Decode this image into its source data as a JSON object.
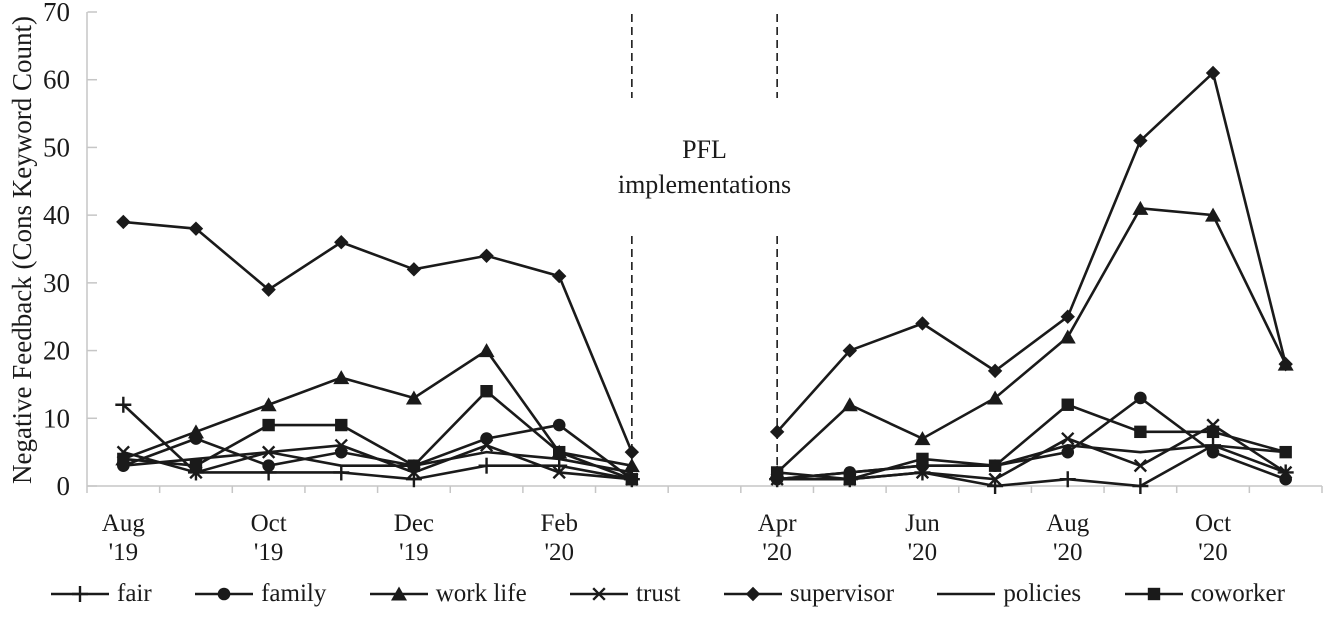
{
  "figure": {
    "y_axis_title": "Negative Feedback (Cons Keyword Count)"
  },
  "chart_data": {
    "type": "line",
    "title": "",
    "xlabel": "",
    "ylabel": "Negative Feedback (Cons Keyword Count)",
    "ylim": [
      0,
      70
    ],
    "yticks": [
      0,
      10,
      20,
      30,
      40,
      50,
      60,
      70
    ],
    "grid": false,
    "legend_position": "bottom",
    "line_color": "#1a1a1a",
    "axis_color": "#c6c6c6",
    "categories": [
      "Aug '19",
      "Sep '19",
      "Oct '19",
      "Nov '19",
      "Dec '19",
      "Jan '20",
      "Feb '20",
      "Mar '20",
      "Apr '20",
      "May '20",
      "Jun '20",
      "Jul '20",
      "Aug '20",
      "Sep '20",
      "Oct '20",
      "Nov '20"
    ],
    "x_tick_labels": [
      {
        "month": "Aug",
        "year": "'19",
        "index": 0
      },
      {
        "month": "Oct",
        "year": "'19",
        "index": 2
      },
      {
        "month": "Dec",
        "year": "'19",
        "index": 4
      },
      {
        "month": "Feb",
        "year": "'20",
        "index": 6
      },
      {
        "month": "Apr",
        "year": "'20",
        "index": 8
      },
      {
        "month": "Jun",
        "year": "'20",
        "index": 10
      },
      {
        "month": "Aug",
        "year": "'20",
        "index": 12
      },
      {
        "month": "Oct",
        "year": "'20",
        "index": 14
      }
    ],
    "gap_after_index": 7,
    "dashed_lines_at_indices": [
      7,
      8
    ],
    "annotation_lines": [
      "PFL",
      "implementations"
    ],
    "series": [
      {
        "name": "fair",
        "marker": "plus",
        "values": [
          12,
          2,
          2,
          2,
          1,
          3,
          3,
          1,
          1,
          1,
          2,
          0,
          1,
          0,
          6,
          2
        ]
      },
      {
        "name": "family",
        "marker": "circle",
        "values": [
          3,
          7,
          3,
          5,
          3,
          7,
          9,
          1,
          1,
          2,
          3,
          3,
          5,
          13,
          5,
          1
        ]
      },
      {
        "name": "work life",
        "marker": "triangle",
        "values": [
          4,
          8,
          12,
          16,
          13,
          20,
          5,
          3,
          2,
          12,
          7,
          13,
          22,
          41,
          40,
          18
        ]
      },
      {
        "name": "trust",
        "marker": "x",
        "values": [
          5,
          2,
          5,
          6,
          2,
          6,
          2,
          1,
          1,
          1,
          2,
          1,
          7,
          3,
          9,
          2
        ]
      },
      {
        "name": "supervisor",
        "marker": "diamond",
        "values": [
          39,
          38,
          29,
          36,
          32,
          34,
          31,
          5,
          8,
          20,
          24,
          17,
          25,
          51,
          61,
          18
        ]
      },
      {
        "name": "policies",
        "marker": "none",
        "values": [
          3,
          4,
          5,
          3,
          3,
          5,
          4,
          2,
          1,
          2,
          3,
          3,
          6,
          5,
          6,
          5
        ]
      },
      {
        "name": "coworker",
        "marker": "square",
        "values": [
          4,
          3,
          9,
          9,
          3,
          14,
          5,
          1,
          2,
          1,
          4,
          3,
          12,
          8,
          8,
          5
        ]
      }
    ]
  }
}
